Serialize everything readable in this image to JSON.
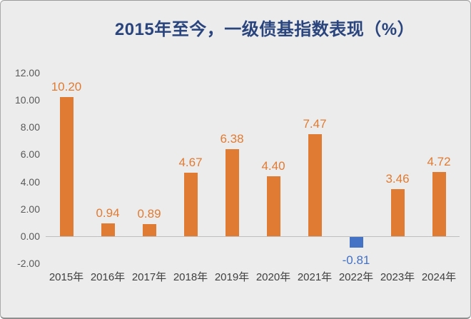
{
  "colors": {
    "background": "#ECECEC",
    "title": "#2A457D",
    "bar_positive": "#E07B33",
    "bar_negative": "#4472C4",
    "label_positive": "#E07B33",
    "label_negative": "#4472C4",
    "y_tick_text": "#595959",
    "x_label_text": "#404040",
    "baseline": "#BFBFBF"
  },
  "chart_data": {
    "type": "bar",
    "title": "2015年至今，一级债基指数表现（%）",
    "xlabel": "",
    "ylabel": "",
    "grid": false,
    "legend_position": "none",
    "ylim": [
      -2,
      12
    ],
    "categories": [
      "2015年",
      "2016年",
      "2017年",
      "2018年",
      "2019年",
      "2020年",
      "2021年",
      "2022年",
      "2023年",
      "2024年"
    ],
    "values": [
      10.2,
      0.94,
      0.89,
      4.67,
      6.38,
      4.4,
      7.47,
      -0.81,
      3.46,
      4.72
    ],
    "value_labels": [
      "10.20",
      "0.94",
      "0.89",
      "4.67",
      "6.38",
      "4.40",
      "7.47",
      "-0.81",
      "3.46",
      "4.72"
    ],
    "ytick_values": [
      12,
      10,
      8,
      6,
      4,
      2,
      0,
      -2
    ],
    "ytick_labels": [
      "12.00",
      "10.00",
      "8.00",
      "6.00",
      "4.00",
      "2.00",
      "0.00",
      "-2.00"
    ]
  }
}
